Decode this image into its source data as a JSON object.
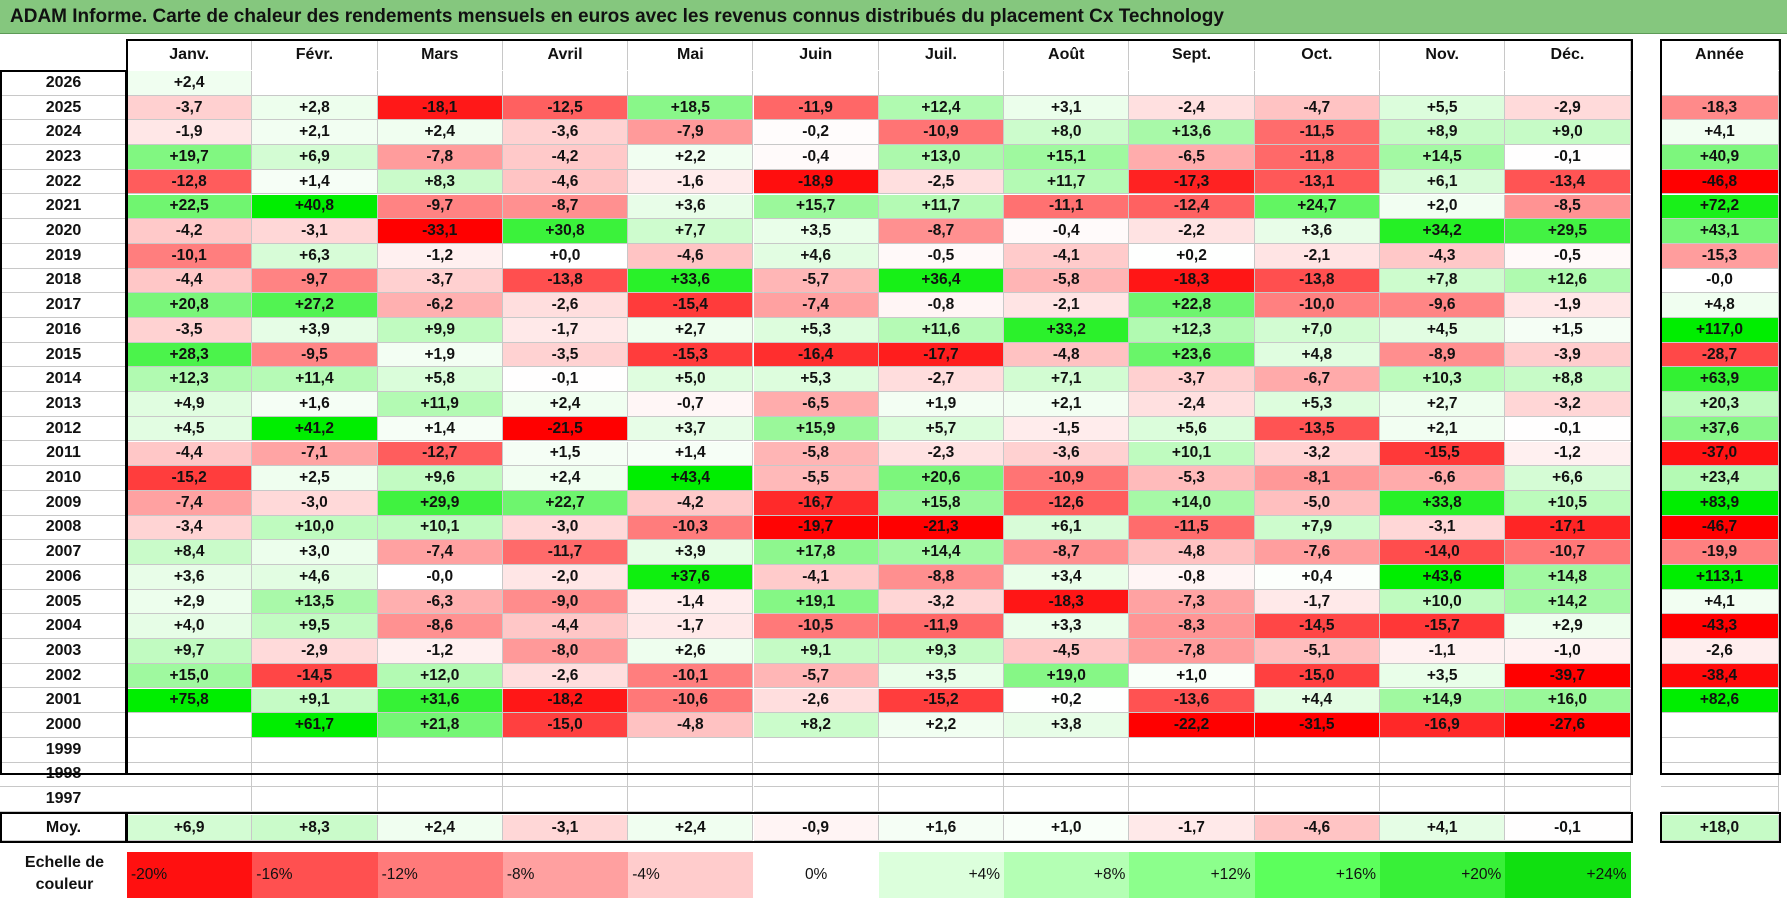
{
  "title": "ADAM Informe. Carte de chaleur des rendements mensuels en euros avec les revenus connus distribués du placement Cx Technology",
  "chart_data": {
    "type": "heatmap",
    "title": "ADAM Informe. Carte de chaleur des rendements mensuels en euros avec les revenus connus distribués du placement Cx Technology",
    "months": [
      "Janv.",
      "Févr.",
      "Mars",
      "Avril",
      "Mai",
      "Juin",
      "Juil.",
      "Août",
      "Sept.",
      "Oct.",
      "Nov.",
      "Déc."
    ],
    "year_header": "Année",
    "rows": [
      {
        "year": "2026",
        "values": [
          "+2,4",
          "",
          "",
          "",
          "",
          "",
          "",
          "",
          "",
          "",
          "",
          ""
        ],
        "annual": ""
      },
      {
        "year": "2025",
        "values": [
          "-3,7",
          "+2,8",
          "-18,1",
          "-12,5",
          "+18,5",
          "-11,9",
          "+12,4",
          "+3,1",
          "-2,4",
          "-4,7",
          "+5,5",
          "-2,9"
        ],
        "annual": "-18,3"
      },
      {
        "year": "2024",
        "values": [
          "-1,9",
          "+2,1",
          "+2,4",
          "-3,6",
          "-7,9",
          "-0,2",
          "-10,9",
          "+8,0",
          "+13,6",
          "-11,5",
          "+8,9",
          "+9,0"
        ],
        "annual": "+4,1"
      },
      {
        "year": "2023",
        "values": [
          "+19,7",
          "+6,9",
          "-7,8",
          "-4,2",
          "+2,2",
          "-0,4",
          "+13,0",
          "+15,1",
          "-6,5",
          "-11,8",
          "+14,5",
          "-0,1"
        ],
        "annual": "+40,9"
      },
      {
        "year": "2022",
        "values": [
          "-12,8",
          "+1,4",
          "+8,3",
          "-4,6",
          "-1,6",
          "-18,9",
          "-2,5",
          "+11,7",
          "-17,3",
          "-13,1",
          "+6,1",
          "-13,4"
        ],
        "annual": "-46,8"
      },
      {
        "year": "2021",
        "values": [
          "+22,5",
          "+40,8",
          "-9,7",
          "-8,7",
          "+3,6",
          "+15,7",
          "+11,7",
          "-11,1",
          "-12,4",
          "+24,7",
          "+2,0",
          "-8,5"
        ],
        "annual": "+72,2"
      },
      {
        "year": "2020",
        "values": [
          "-4,2",
          "-3,1",
          "-33,1",
          "+30,8",
          "+7,7",
          "+3,5",
          "-8,7",
          "-0,4",
          "-2,2",
          "+3,6",
          "+34,2",
          "+29,5"
        ],
        "annual": "+43,1"
      },
      {
        "year": "2019",
        "values": [
          "-10,1",
          "+6,3",
          "-1,2",
          "+0,0",
          "-4,6",
          "+4,6",
          "-0,5",
          "-4,1",
          "+0,2",
          "-2,1",
          "-4,3",
          "-0,5"
        ],
        "annual": "-15,3"
      },
      {
        "year": "2018",
        "values": [
          "-4,4",
          "-9,7",
          "-3,7",
          "-13,8",
          "+33,6",
          "-5,7",
          "+36,4",
          "-5,8",
          "-18,3",
          "-13,8",
          "+7,8",
          "+12,6"
        ],
        "annual": "-0,0"
      },
      {
        "year": "2017",
        "values": [
          "+20,8",
          "+27,2",
          "-6,2",
          "-2,6",
          "-15,4",
          "-7,4",
          "-0,8",
          "-2,1",
          "+22,8",
          "-10,0",
          "-9,6",
          "-1,9"
        ],
        "annual": "+4,8"
      },
      {
        "year": "2016",
        "values": [
          "-3,5",
          "+3,9",
          "+9,9",
          "-1,7",
          "+2,7",
          "+5,3",
          "+11,6",
          "+33,2",
          "+12,3",
          "+7,0",
          "+4,5",
          "+1,5"
        ],
        "annual": "+117,0"
      },
      {
        "year": "2015",
        "values": [
          "+28,3",
          "-9,5",
          "+1,9",
          "-3,5",
          "-15,3",
          "-16,4",
          "-17,7",
          "-4,8",
          "+23,6",
          "+4,8",
          "-8,9",
          "-3,9"
        ],
        "annual": "-28,7"
      },
      {
        "year": "2014",
        "values": [
          "+12,3",
          "+11,4",
          "+5,8",
          "-0,1",
          "+5,0",
          "+5,3",
          "-2,7",
          "+7,1",
          "-3,7",
          "-6,7",
          "+10,3",
          "+8,8"
        ],
        "annual": "+63,9"
      },
      {
        "year": "2013",
        "values": [
          "+4,9",
          "+1,6",
          "+11,9",
          "+2,4",
          "-0,7",
          "-6,5",
          "+1,9",
          "+2,1",
          "-2,4",
          "+5,3",
          "+2,7",
          "-3,2"
        ],
        "annual": "+20,3"
      },
      {
        "year": "2012",
        "values": [
          "+4,5",
          "+41,2",
          "+1,4",
          "-21,5",
          "+3,7",
          "+15,9",
          "+5,7",
          "-1,5",
          "+5,6",
          "-13,5",
          "+2,1",
          "-0,1"
        ],
        "annual": "+37,6"
      },
      {
        "year": "2011",
        "values": [
          "-4,4",
          "-7,1",
          "-12,7",
          "+1,5",
          "+1,4",
          "-5,8",
          "-2,3",
          "-3,6",
          "+10,1",
          "-3,2",
          "-15,5",
          "-1,2"
        ],
        "annual": "-37,0"
      },
      {
        "year": "2010",
        "values": [
          "-15,2",
          "+2,5",
          "+9,6",
          "+2,4",
          "+43,4",
          "-5,5",
          "+20,6",
          "-10,9",
          "-5,3",
          "-8,1",
          "-6,6",
          "+6,6"
        ],
        "annual": "+23,4"
      },
      {
        "year": "2009",
        "values": [
          "-7,4",
          "-3,0",
          "+29,9",
          "+22,7",
          "-4,2",
          "-16,7",
          "+15,8",
          "-12,6",
          "+14,0",
          "-5,0",
          "+33,8",
          "+10,5"
        ],
        "annual": "+83,9"
      },
      {
        "year": "2008",
        "values": [
          "-3,4",
          "+10,0",
          "+10,1",
          "-3,0",
          "-10,3",
          "-19,7",
          "-21,3",
          "+6,1",
          "-11,5",
          "+7,9",
          "-3,1",
          "-17,1"
        ],
        "annual": "-46,7"
      },
      {
        "year": "2007",
        "values": [
          "+8,4",
          "+3,0",
          "-7,4",
          "-11,7",
          "+3,9",
          "+17,8",
          "+14,4",
          "-8,7",
          "-4,8",
          "-7,6",
          "-14,0",
          "-10,7"
        ],
        "annual": "-19,9"
      },
      {
        "year": "2006",
        "values": [
          "+3,6",
          "+4,6",
          "-0,0",
          "-2,0",
          "+37,6",
          "-4,1",
          "-8,8",
          "+3,4",
          "-0,8",
          "+0,4",
          "+43,6",
          "+14,8"
        ],
        "annual": "+113,1"
      },
      {
        "year": "2005",
        "values": [
          "+2,9",
          "+13,5",
          "-6,3",
          "-9,0",
          "-1,4",
          "+19,1",
          "-3,2",
          "-18,3",
          "-7,3",
          "-1,7",
          "+10,0",
          "+14,2"
        ],
        "annual": "+4,1"
      },
      {
        "year": "2004",
        "values": [
          "+4,0",
          "+9,5",
          "-8,6",
          "-4,4",
          "-1,7",
          "-10,5",
          "-11,9",
          "+3,3",
          "-8,3",
          "-14,5",
          "-15,7",
          "+2,9"
        ],
        "annual": "-43,3"
      },
      {
        "year": "2003",
        "values": [
          "+9,7",
          "-2,9",
          "-1,2",
          "-8,0",
          "+2,6",
          "+9,1",
          "+9,3",
          "-4,5",
          "-7,8",
          "-5,1",
          "-1,1",
          "-1,0"
        ],
        "annual": "-2,6"
      },
      {
        "year": "2002",
        "values": [
          "+15,0",
          "-14,5",
          "+12,0",
          "-2,6",
          "-10,1",
          "-5,7",
          "+3,5",
          "+19,0",
          "+1,0",
          "-15,0",
          "+3,5",
          "-39,7"
        ],
        "annual": "-38,4"
      },
      {
        "year": "2001",
        "values": [
          "+75,8",
          "+9,1",
          "+31,6",
          "-18,2",
          "-10,6",
          "-2,6",
          "-15,2",
          "+0,2",
          "-13,6",
          "+4,4",
          "+14,9",
          "+16,0"
        ],
        "annual": "+82,6"
      },
      {
        "year": "2000",
        "values": [
          "",
          "+61,7",
          "+21,8",
          "-15,0",
          "-4,8",
          "+8,2",
          "+2,2",
          "+3,8",
          "-22,2",
          "-31,5",
          "-16,9",
          "-27,6"
        ],
        "annual": ""
      },
      {
        "year": "1999",
        "values": [
          "",
          "",
          "",
          "",
          "",
          "",
          "",
          "",
          "",
          "",
          "",
          ""
        ],
        "annual": ""
      },
      {
        "year": "1998",
        "values": [
          "",
          "",
          "",
          "",
          "",
          "",
          "",
          "",
          "",
          "",
          "",
          ""
        ],
        "annual": ""
      },
      {
        "year": "1997",
        "values": [
          "",
          "",
          "",
          "",
          "",
          "",
          "",
          "",
          "",
          "",
          "",
          ""
        ],
        "annual": ""
      }
    ],
    "average": {
      "label": "Moy.",
      "values": [
        "+6,9",
        "+8,3",
        "+2,4",
        "-3,1",
        "+2,4",
        "-0,9",
        "+1,6",
        "+1,0",
        "-1,7",
        "-4,6",
        "+4,1",
        "-0,1"
      ],
      "annual": "+18,0"
    },
    "scale_label": "Echelle de couleur",
    "scale": [
      "-20%",
      "-16%",
      "-12%",
      "-8%",
      "-4%",
      "0%",
      "+4%",
      "+8%",
      "+12%",
      "+16%",
      "+20%",
      "+24%"
    ],
    "colors": {
      "neg_max": "#ff0000",
      "pos_max": "#00ee00",
      "neutral": "#ffffff",
      "title_bg": "#85c77e",
      "scale": [
        "#ff1010",
        "#ff5050",
        "#ff7a7a",
        "#ffa0a0",
        "#ffcccc",
        "#ffffff",
        "#dcffdc",
        "#b4ffb4",
        "#8cff8c",
        "#5cff5c",
        "#38f038",
        "#10e010"
      ]
    }
  }
}
